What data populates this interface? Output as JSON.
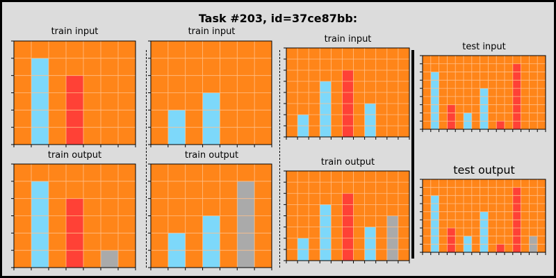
{
  "title": "Task #203, id=37ce87bb:",
  "colors": {
    "background": "#ff8519",
    "grid_line": "#ffc08a",
    "cell_colors": {
      "1": "#7dd8fa",
      "2": "#ff4136",
      "5": "#aaaaaa"
    }
  },
  "panels": [
    {
      "title": "train input",
      "cols": 7,
      "rows": 6,
      "bars": [
        {
          "col": 1,
          "height": 5,
          "color": 1
        },
        {
          "col": 3,
          "height": 4,
          "color": 2
        }
      ]
    },
    {
      "title": "train output",
      "cols": 7,
      "rows": 6,
      "bars": [
        {
          "col": 1,
          "height": 5,
          "color": 1
        },
        {
          "col": 3,
          "height": 4,
          "color": 2
        },
        {
          "col": 5,
          "height": 1,
          "color": 5
        }
      ]
    },
    {
      "title": "train input",
      "cols": 7,
      "rows": 6,
      "bars": [
        {
          "col": 1,
          "height": 2,
          "color": 1
        },
        {
          "col": 3,
          "height": 3,
          "color": 1
        }
      ]
    },
    {
      "title": "train output",
      "cols": 7,
      "rows": 6,
      "bars": [
        {
          "col": 1,
          "height": 2,
          "color": 1
        },
        {
          "col": 3,
          "height": 3,
          "color": 1
        },
        {
          "col": 5,
          "height": 5,
          "color": 5
        }
      ]
    },
    {
      "title": "train input",
      "cols": 11,
      "rows": 8,
      "bars": [
        {
          "col": 1,
          "height": 2,
          "color": 1
        },
        {
          "col": 3,
          "height": 5,
          "color": 1
        },
        {
          "col": 5,
          "height": 6,
          "color": 2
        },
        {
          "col": 7,
          "height": 3,
          "color": 1
        }
      ]
    },
    {
      "title": "train output",
      "cols": 11,
      "rows": 8,
      "bars": [
        {
          "col": 1,
          "height": 2,
          "color": 1
        },
        {
          "col": 3,
          "height": 5,
          "color": 1
        },
        {
          "col": 5,
          "height": 6,
          "color": 2
        },
        {
          "col": 7,
          "height": 3,
          "color": 1
        },
        {
          "col": 9,
          "height": 4,
          "color": 5
        }
      ]
    },
    {
      "title": "test input",
      "cols": 15,
      "rows": 9,
      "bars": [
        {
          "col": 1,
          "height": 7,
          "color": 1
        },
        {
          "col": 3,
          "height": 3,
          "color": 2
        },
        {
          "col": 5,
          "height": 2,
          "color": 1
        },
        {
          "col": 7,
          "height": 5,
          "color": 1
        },
        {
          "col": 9,
          "height": 1,
          "color": 2
        },
        {
          "col": 11,
          "height": 8,
          "color": 2
        }
      ]
    },
    {
      "title": "test output",
      "cols": 15,
      "rows": 9,
      "bars": [
        {
          "col": 1,
          "height": 7,
          "color": 1
        },
        {
          "col": 3,
          "height": 3,
          "color": 2
        },
        {
          "col": 5,
          "height": 2,
          "color": 1
        },
        {
          "col": 7,
          "height": 5,
          "color": 1
        },
        {
          "col": 9,
          "height": 1,
          "color": 2
        },
        {
          "col": 11,
          "height": 8,
          "color": 2
        },
        {
          "col": 13,
          "height": 2,
          "color": 5
        }
      ]
    }
  ]
}
